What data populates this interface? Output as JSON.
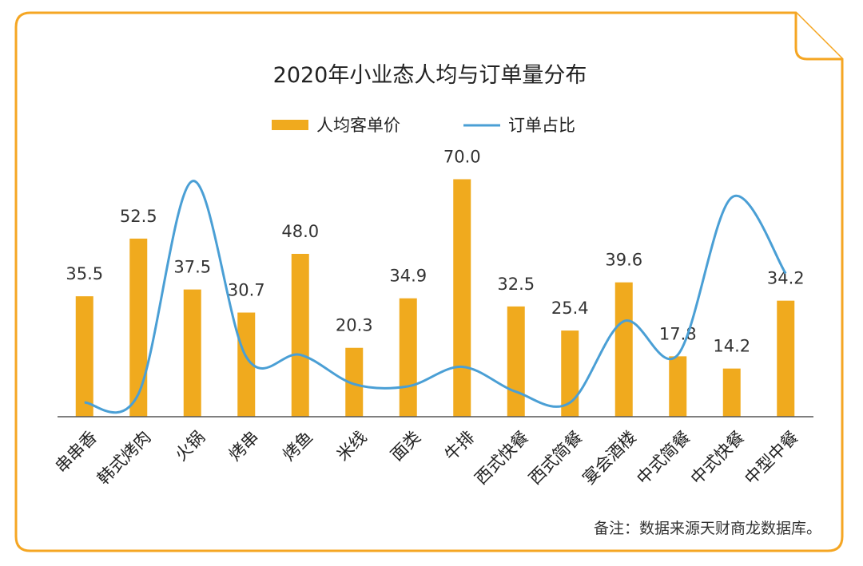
{
  "colors": {
    "frame": "#F5A623",
    "bar": "#F0AA1E",
    "line": "#4A9FD5",
    "axis": "#555555"
  },
  "chart_data": {
    "type": "bar",
    "title": "2020年小业态人均与订单量分布",
    "categories": [
      "串串香",
      "韩式烤肉",
      "火锅",
      "烤串",
      "烤鱼",
      "米线",
      "面类",
      "牛排",
      "西式快餐",
      "西式简餐",
      "宴会酒楼",
      "中式简餐",
      "中式快餐",
      "中型中餐"
    ],
    "series": [
      {
        "name": "人均客单价",
        "type": "bar",
        "values": [
          35.5,
          52.5,
          37.5,
          30.7,
          48.0,
          20.3,
          34.9,
          70.0,
          32.5,
          25.4,
          39.6,
          17.8,
          14.2,
          34.2
        ],
        "labels": [
          "35.5",
          "52.5",
          "37.5",
          "30.7",
          "48.0",
          "20.3",
          "34.9",
          "70.0",
          "32.5",
          "25.4",
          "39.6",
          "17.8",
          "14.2",
          "34.2"
        ]
      },
      {
        "name": "订单占比",
        "type": "line",
        "values": [
          1.3,
          2.1,
          21.7,
          5.5,
          5.7,
          3.0,
          2.8,
          4.6,
          2.3,
          1.3,
          8.8,
          5.7,
          20.2,
          13.2
        ]
      }
    ],
    "ylim": [
      0,
      80
    ],
    "line_ylim": [
      0,
      25
    ],
    "legend_position": "top-center",
    "grid": false
  },
  "note": "备注：数据来源天财商龙数据库。"
}
